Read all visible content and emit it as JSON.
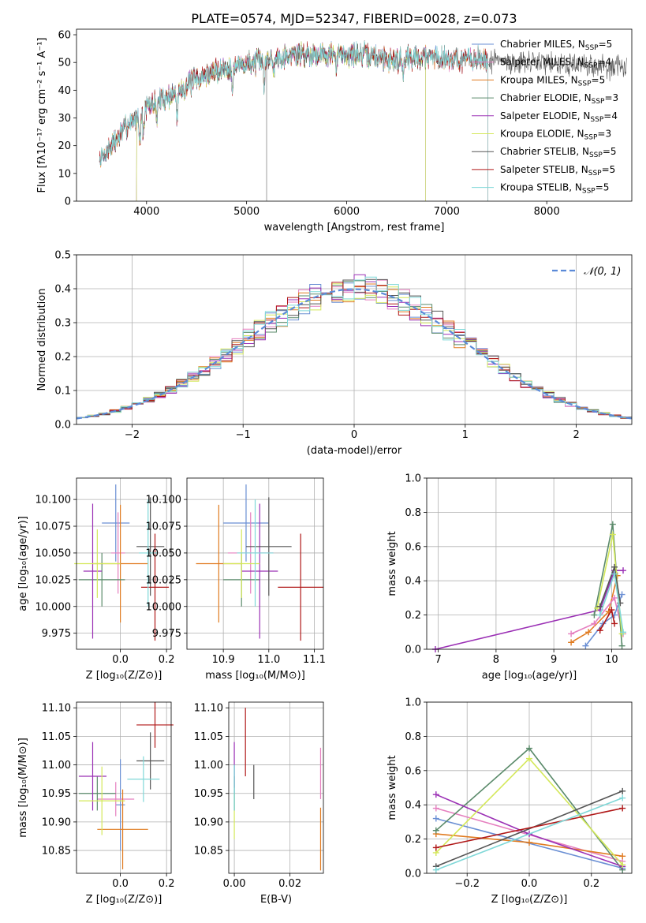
{
  "title": "PLATE=0574, MJD=52347, FIBERID=0028, z=0.073",
  "colors": {
    "chabrier_miles": "#6a8fd4",
    "salpeter_miles": "#e57fbf",
    "kroupa_miles": "#e07b20",
    "chabrier_elodie": "#5a8a6a",
    "salpeter_elodie": "#9b30b5",
    "kroupa_elodie": "#d4e85a",
    "chabrier_stelib": "#555555",
    "salpeter_stelib": "#b01818",
    "kroupa_stelib": "#7fd8d8",
    "normal": "#5b8ad8"
  },
  "chart_data": [
    {
      "id": "spectrum",
      "type": "line",
      "xlabel": "wavelength [Angstrom, rest frame]",
      "ylabel": "Flux [fλ10⁻¹⁷ erg cm⁻² s⁻¹ A⁻¹]",
      "xlim": [
        3300,
        8850
      ],
      "ylim": [
        0,
        62
      ],
      "xticks": [
        4000,
        5000,
        6000,
        7000,
        8000
      ],
      "yticks": [
        0,
        10,
        20,
        30,
        40,
        50,
        60
      ],
      "legend_position": "upper-right",
      "series": [
        {
          "name": "Chabrier MILES, N_SSP=5",
          "legend": [
            "Chabrier MILES, N",
            "SSP",
            "=5"
          ],
          "color_key": "chabrier_miles",
          "range": [
            3530,
            7410
          ]
        },
        {
          "name": "Salpeter MILES, N_SSP=4",
          "legend": [
            "Salpeter MILES, N",
            "SSP",
            "=4"
          ],
          "color_key": "salpeter_miles",
          "range": [
            3530,
            7410
          ]
        },
        {
          "name": "Kroupa MILES, N_SSP=5",
          "legend": [
            "Kroupa MILES, N",
            "SSP",
            "=5"
          ],
          "color_key": "kroupa_miles",
          "range": [
            3530,
            7410
          ]
        },
        {
          "name": "Chabrier ELODIE, N_SSP=3",
          "legend": [
            "Chabrier ELODIE, N",
            "SSP",
            "=3"
          ],
          "color_key": "chabrier_elodie",
          "range": [
            3900,
            6790
          ]
        },
        {
          "name": "Salpeter ELODIE, N_SSP=4",
          "legend": [
            "Salpeter ELODIE, N",
            "SSP",
            "=4"
          ],
          "color_key": "salpeter_elodie",
          "range": [
            3900,
            6790
          ]
        },
        {
          "name": "Kroupa ELODIE, N_SSP=3",
          "legend": [
            "Kroupa ELODIE, N",
            "SSP",
            "=3"
          ],
          "color_key": "kroupa_elodie",
          "range": [
            3900,
            6790
          ]
        },
        {
          "name": "Chabrier STELIB, N_SSP=5",
          "legend": [
            "Chabrier STELIB, N",
            "SSP",
            "=5"
          ],
          "color_key": "chabrier_stelib",
          "range": [
            3530,
            8800
          ]
        },
        {
          "name": "Salpeter STELIB, N_SSP=5",
          "legend": [
            "Salpeter STELIB, N",
            "SSP",
            "=5"
          ],
          "color_key": "salpeter_stelib",
          "range": [
            3530,
            7410
          ]
        },
        {
          "name": "Kroupa STELIB, N_SSP=5",
          "legend": [
            "Kroupa STELIB, N",
            "SSP",
            "=5"
          ],
          "color_key": "kroupa_stelib",
          "range": [
            3530,
            7410
          ]
        }
      ],
      "continuum": [
        [
          3530,
          15
        ],
        [
          3650,
          20
        ],
        [
          3800,
          27
        ],
        [
          3950,
          32
        ],
        [
          4100,
          36
        ],
        [
          4300,
          39
        ],
        [
          4500,
          44
        ],
        [
          4700,
          47
        ],
        [
          4900,
          49
        ],
        [
          5100,
          50
        ],
        [
          5300,
          52
        ],
        [
          5500,
          53
        ],
        [
          5700,
          53
        ],
        [
          5900,
          53
        ],
        [
          6100,
          53
        ],
        [
          6300,
          52
        ],
        [
          6500,
          51
        ],
        [
          6700,
          52
        ],
        [
          6900,
          52
        ],
        [
          7100,
          51
        ],
        [
          7400,
          51
        ],
        [
          7700,
          50
        ],
        [
          8000,
          50
        ],
        [
          8400,
          49
        ],
        [
          8800,
          48
        ]
      ]
    },
    {
      "id": "residuals",
      "type": "histogram",
      "xlabel": "(data-model)/error",
      "ylabel": "Normed distribution",
      "xlim": [
        -2.5,
        2.5
      ],
      "ylim": [
        0,
        0.5
      ],
      "xticks": [
        -2,
        -1,
        0,
        1,
        2
      ],
      "yticks": [
        0.0,
        0.1,
        0.2,
        0.3,
        0.4,
        0.5
      ],
      "legend": "𝒩(0, 1)",
      "bin_width": 0.1,
      "series_color_keys": [
        "chabrier_miles",
        "salpeter_miles",
        "kroupa_miles",
        "chabrier_elodie",
        "salpeter_elodie",
        "kroupa_elodie",
        "chabrier_stelib",
        "salpeter_stelib",
        "kroupa_stelib"
      ]
    },
    {
      "id": "age_vs_Z",
      "type": "errorbar",
      "xlabel": "Z [log₁₀(Z/Z⊙)]",
      "ylabel": "age  [log₁₀(age/yr)]",
      "xlim": [
        -0.19,
        0.22
      ],
      "ylim": [
        9.96,
        10.12
      ],
      "xticks": [
        0.0,
        0.2
      ],
      "yticks": [
        9.975,
        10.0,
        10.025,
        10.05,
        10.075,
        10.1
      ],
      "points": [
        {
          "color_key": "chabrier_miles",
          "x": -0.02,
          "xerr": 0.06,
          "y": 10.078,
          "yerr": 0.036
        },
        {
          "color_key": "salpeter_miles",
          "x": -0.01,
          "xerr": 0.03,
          "y": 10.05,
          "yerr": 0.038
        },
        {
          "color_key": "kroupa_miles",
          "x": 0.0,
          "xerr": 0.12,
          "y": 10.04,
          "yerr": 0.055
        },
        {
          "color_key": "chabrier_elodie",
          "x": -0.08,
          "xerr": 0.1,
          "y": 10.025,
          "yerr": 0.025
        },
        {
          "color_key": "salpeter_elodie",
          "x": -0.12,
          "xerr": 0.04,
          "y": 10.033,
          "yerr": 0.063
        },
        {
          "color_key": "kroupa_elodie",
          "x": -0.1,
          "xerr": 0.1,
          "y": 10.04,
          "yerr": 0.032
        },
        {
          "color_key": "chabrier_stelib",
          "x": 0.13,
          "xerr": 0.06,
          "y": 10.056,
          "yerr": 0.046
        },
        {
          "color_key": "salpeter_stelib",
          "x": 0.15,
          "xerr": 0.06,
          "y": 10.018,
          "yerr": 0.05
        },
        {
          "color_key": "kroupa_stelib",
          "x": 0.12,
          "xerr": 0.04,
          "y": 10.05,
          "yerr": 0.05
        }
      ]
    },
    {
      "id": "age_vs_mass",
      "type": "errorbar",
      "xlabel": "mass [log₁₀(M/M⊙)]",
      "ylabel": "",
      "xlim": [
        10.82,
        11.12
      ],
      "ylim": [
        9.96,
        10.12
      ],
      "xticks": [
        10.9,
        11.0,
        11.1
      ],
      "yticks": [
        9.975,
        10.0,
        10.025,
        10.05,
        10.075,
        10.1
      ],
      "points": [
        {
          "color_key": "chabrier_miles",
          "x": 10.95,
          "xerr": 0.05,
          "y": 10.078,
          "yerr": 0.036
        },
        {
          "color_key": "salpeter_miles",
          "x": 10.96,
          "xerr": 0.05,
          "y": 10.05,
          "yerr": 0.038
        },
        {
          "color_key": "kroupa_miles",
          "x": 10.89,
          "xerr": 0.05,
          "y": 10.04,
          "yerr": 0.055
        },
        {
          "color_key": "chabrier_elodie",
          "x": 10.94,
          "xerr": 0.04,
          "y": 10.025,
          "yerr": 0.025
        },
        {
          "color_key": "salpeter_elodie",
          "x": 10.98,
          "xerr": 0.04,
          "y": 10.033,
          "yerr": 0.063
        },
        {
          "color_key": "kroupa_elodie",
          "x": 10.94,
          "xerr": 0.04,
          "y": 10.04,
          "yerr": 0.032
        },
        {
          "color_key": "chabrier_stelib",
          "x": 11.0,
          "xerr": 0.05,
          "y": 10.056,
          "yerr": 0.046
        },
        {
          "color_key": "salpeter_stelib",
          "x": 11.07,
          "xerr": 0.05,
          "y": 10.018,
          "yerr": 0.05
        },
        {
          "color_key": "kroupa_stelib",
          "x": 10.97,
          "xerr": 0.04,
          "y": 10.05,
          "yerr": 0.05
        }
      ]
    },
    {
      "id": "weight_vs_age",
      "type": "line",
      "xlabel": "age  [log₁₀(age/yr)]",
      "ylabel": "mass weight",
      "xlim": [
        6.8,
        10.35
      ],
      "ylim": [
        0,
        1.0
      ],
      "xticks": [
        7,
        8,
        9,
        10
      ],
      "yticks": [
        0.0,
        0.2,
        0.4,
        0.6,
        0.8,
        1.0
      ],
      "series": [
        {
          "color_key": "salpeter_elodie",
          "points": [
            [
              6.95,
              0.0
            ],
            [
              9.8,
              0.23
            ],
            [
              10.05,
              0.46
            ],
            [
              10.2,
              0.46
            ]
          ]
        },
        {
          "color_key": "kroupa_miles",
          "points": [
            [
              9.3,
              0.04
            ],
            [
              9.6,
              0.1
            ],
            [
              9.95,
              0.22
            ],
            [
              10.1,
              0.43
            ]
          ]
        },
        {
          "color_key": "salpeter_miles",
          "points": [
            [
              9.3,
              0.09
            ],
            [
              9.7,
              0.15
            ],
            [
              10.05,
              0.3
            ],
            [
              10.2,
              0.09
            ]
          ]
        },
        {
          "color_key": "chabrier_miles",
          "points": [
            [
              9.55,
              0.02
            ],
            [
              9.85,
              0.15
            ],
            [
              10.05,
              0.2
            ],
            [
              10.18,
              0.32
            ]
          ]
        },
        {
          "color_key": "chabrier_elodie",
          "points": [
            [
              9.7,
              0.2
            ],
            [
              10.02,
              0.73
            ],
            [
              10.18,
              0.02
            ]
          ]
        },
        {
          "color_key": "kroupa_elodie",
          "points": [
            [
              9.75,
              0.24
            ],
            [
              10.02,
              0.67
            ],
            [
              10.18,
              0.09
            ]
          ]
        },
        {
          "color_key": "chabrier_stelib",
          "points": [
            [
              9.8,
              0.25
            ],
            [
              10.05,
              0.48
            ],
            [
              10.15,
              0.27
            ]
          ]
        },
        {
          "color_key": "salpeter_stelib",
          "points": [
            [
              9.8,
              0.11
            ],
            [
              10.0,
              0.23
            ],
            [
              10.05,
              0.15
            ]
          ]
        },
        {
          "color_key": "kroupa_stelib",
          "points": [
            [
              9.8,
              0.2
            ],
            [
              10.05,
              0.44
            ],
            [
              10.2,
              0.1
            ]
          ]
        }
      ]
    },
    {
      "id": "mass_vs_Z",
      "type": "errorbar",
      "xlabel": "Z [log₁₀(Z/Z⊙)]",
      "ylabel": "mass [log₁₀(M/M⊙)]",
      "xlim": [
        -0.19,
        0.22
      ],
      "ylim": [
        10.81,
        11.11
      ],
      "xticks": [
        0.0,
        0.2
      ],
      "yticks": [
        10.85,
        10.9,
        10.95,
        11.0,
        11.05,
        11.1
      ],
      "points": [
        {
          "color_key": "chabrier_miles",
          "x": 0.0,
          "xerr": 0.02,
          "y": 10.93,
          "yerr": 0.08
        },
        {
          "color_key": "salpeter_miles",
          "x": -0.02,
          "xerr": 0.08,
          "y": 10.94,
          "yerr": 0.03
        },
        {
          "color_key": "kroupa_miles",
          "x": 0.01,
          "xerr": 0.11,
          "y": 10.887,
          "yerr": 0.07
        },
        {
          "color_key": "chabrier_elodie",
          "x": -0.1,
          "xerr": 0.08,
          "y": 10.95,
          "yerr": 0.03
        },
        {
          "color_key": "salpeter_elodie",
          "x": -0.12,
          "xerr": 0.06,
          "y": 10.98,
          "yerr": 0.06
        },
        {
          "color_key": "kroupa_elodie",
          "x": -0.08,
          "xerr": 0.1,
          "y": 10.937,
          "yerr": 0.06
        },
        {
          "color_key": "chabrier_stelib",
          "x": 0.13,
          "xerr": 0.06,
          "y": 11.007,
          "yerr": 0.05
        },
        {
          "color_key": "salpeter_stelib",
          "x": 0.15,
          "xerr": 0.08,
          "y": 11.07,
          "yerr": 0.04
        },
        {
          "color_key": "kroupa_stelib",
          "x": 0.1,
          "xerr": 0.07,
          "y": 10.975,
          "yerr": 0.04
        }
      ]
    },
    {
      "id": "mass_vs_EBV",
      "type": "errorbar",
      "xlabel": "E(B-V)",
      "ylabel": "",
      "xlim": [
        -0.002,
        0.032
      ],
      "ylim": [
        10.81,
        11.11
      ],
      "xticks": [
        0.0,
        0.02
      ],
      "yticks": [
        10.85,
        10.9,
        10.95,
        11.0,
        11.05,
        11.1
      ],
      "points": [
        {
          "color_key": "chabrier_miles",
          "x": 0.0,
          "xerr": 0.0,
          "y": 10.96,
          "yerr": 0.04
        },
        {
          "color_key": "salpeter_miles",
          "x": 0.031,
          "xerr": 0.0,
          "y": 10.985,
          "yerr": 0.045
        },
        {
          "color_key": "kroupa_miles",
          "x": 0.031,
          "xerr": 0.0,
          "y": 10.87,
          "yerr": 0.055
        },
        {
          "color_key": "chabrier_elodie",
          "x": 0.0,
          "xerr": 0.0,
          "y": 10.95,
          "yerr": 0.03
        },
        {
          "color_key": "salpeter_elodie",
          "x": 0.0,
          "xerr": 0.0,
          "y": 11.0,
          "yerr": 0.04
        },
        {
          "color_key": "kroupa_elodie",
          "x": 0.0,
          "xerr": 0.0,
          "y": 10.91,
          "yerr": 0.04
        },
        {
          "color_key": "chabrier_stelib",
          "x": 0.007,
          "xerr": 0.0,
          "y": 10.97,
          "yerr": 0.03
        },
        {
          "color_key": "salpeter_stelib",
          "x": 0.004,
          "xerr": 0.0,
          "y": 11.04,
          "yerr": 0.06
        },
        {
          "color_key": "kroupa_stelib",
          "x": 0.0,
          "xerr": 0.0,
          "y": 10.96,
          "yerr": 0.04
        }
      ]
    },
    {
      "id": "weight_vs_Z",
      "type": "line",
      "xlabel": "Z [log₁₀(Z/Z⊙)]",
      "ylabel": "mass weight",
      "xlim": [
        -0.33,
        0.33
      ],
      "ylim": [
        0,
        1.0
      ],
      "xticks": [
        -0.2,
        0.0,
        0.2
      ],
      "yticks": [
        0.0,
        0.2,
        0.4,
        0.6,
        0.8,
        1.0
      ],
      "series": [
        {
          "color_key": "chabrier_miles",
          "points": [
            [
              -0.3,
              0.32
            ],
            [
              0.3,
              0.03
            ]
          ]
        },
        {
          "color_key": "salpeter_miles",
          "points": [
            [
              -0.3,
              0.38
            ],
            [
              0.3,
              0.07
            ]
          ]
        },
        {
          "color_key": "kroupa_miles",
          "points": [
            [
              -0.3,
              0.23
            ],
            [
              0.0,
              0.18
            ],
            [
              0.3,
              0.1
            ]
          ]
        },
        {
          "color_key": "chabrier_elodie",
          "points": [
            [
              -0.3,
              0.25
            ],
            [
              0.0,
              0.73
            ],
            [
              0.3,
              0.02
            ]
          ]
        },
        {
          "color_key": "salpeter_elodie",
          "points": [
            [
              -0.3,
              0.46
            ],
            [
              0.0,
              0.23
            ],
            [
              0.3,
              0.04
            ]
          ]
        },
        {
          "color_key": "kroupa_elodie",
          "points": [
            [
              -0.3,
              0.12
            ],
            [
              0.0,
              0.67
            ],
            [
              0.3,
              0.05
            ]
          ]
        },
        {
          "color_key": "chabrier_stelib",
          "points": [
            [
              -0.3,
              0.04
            ],
            [
              0.3,
              0.48
            ]
          ]
        },
        {
          "color_key": "salpeter_stelib",
          "points": [
            [
              -0.3,
              0.15
            ],
            [
              0.3,
              0.38
            ]
          ]
        },
        {
          "color_key": "kroupa_stelib",
          "points": [
            [
              -0.3,
              0.02
            ],
            [
              0.3,
              0.44
            ]
          ]
        }
      ]
    }
  ]
}
